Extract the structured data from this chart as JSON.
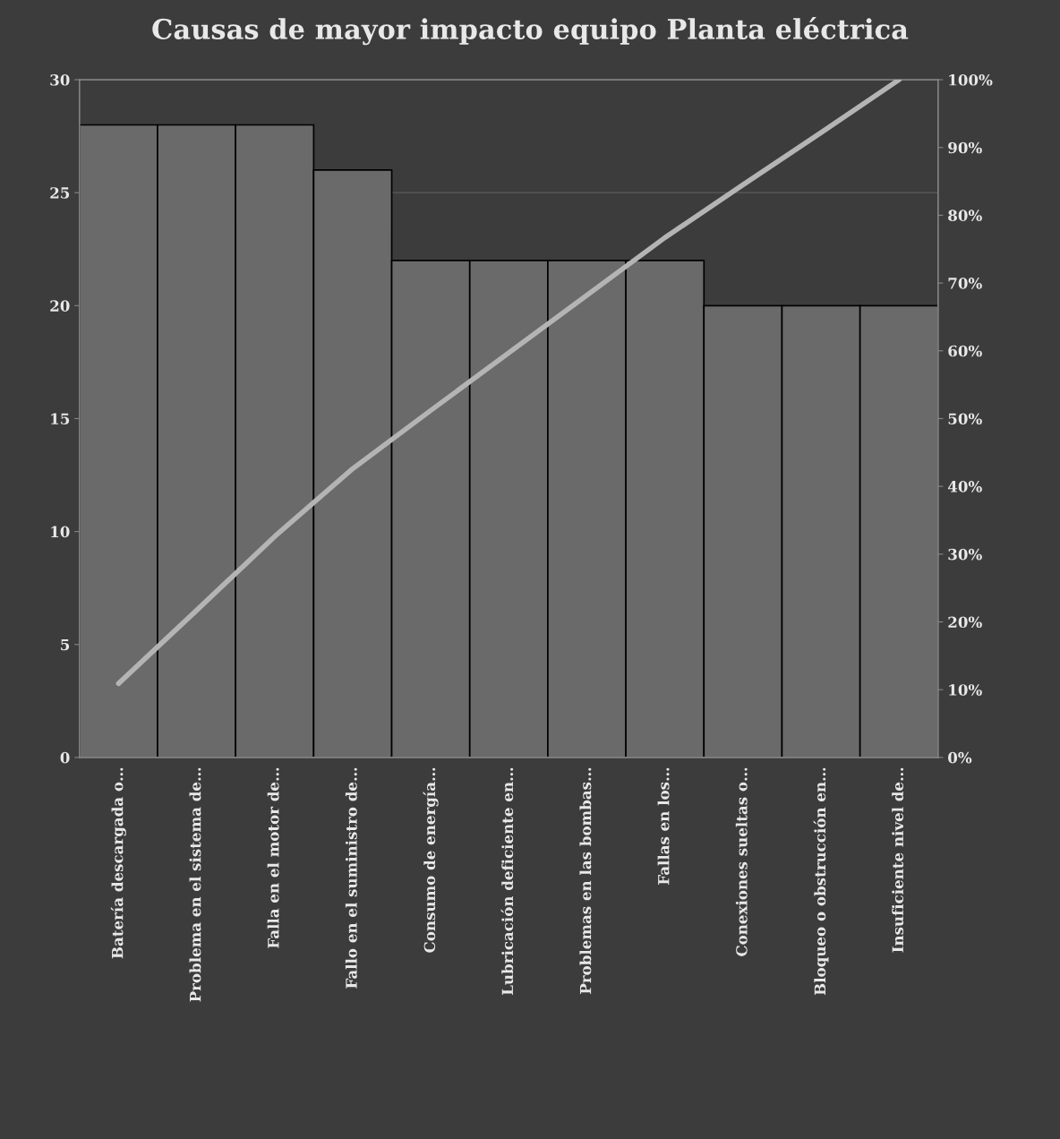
{
  "chart_data": {
    "type": "bar",
    "title": "Causas de mayor impacto equipo Planta eléctrica",
    "categories": [
      "Batería descargada o…",
      "Problema en el sistema de…",
      "Falla en el motor de…",
      "Fallo en el suministro de…",
      "Consumo de energía…",
      "Lubricación deficiente en…",
      "Problemas en las bombas…",
      "Fallas en los…",
      "Conexiones sueltas o…",
      "Bloqueo o obstrucción en…",
      "Insuficiente nivel de…"
    ],
    "series": [
      {
        "color": "#6a6a6a",
        "values": [
          28,
          28,
          28,
          26,
          22,
          22,
          22,
          22,
          20,
          20,
          20
        ]
      },
      {
        "type": "line",
        "axis": "y2",
        "color": "#b4b4b4",
        "values": [
          10.9,
          21.7,
          32.6,
          42.6,
          51.2,
          59.7,
          68.2,
          76.7,
          84.5,
          92.2,
          100
        ]
      }
    ],
    "ylim": [
      0,
      30
    ],
    "yticks": [
      0,
      5,
      10,
      15,
      20,
      25,
      30
    ],
    "y2lim": [
      0,
      100
    ],
    "y2ticks": [
      {
        "value": 0,
        "label": "0%"
      },
      {
        "value": 10,
        "label": "10%"
      },
      {
        "value": 20,
        "label": "20%"
      },
      {
        "value": 30,
        "label": "30%"
      },
      {
        "value": 40,
        "label": "40%"
      },
      {
        "value": 50,
        "label": "50%"
      },
      {
        "value": 60,
        "label": "60%"
      },
      {
        "value": 70,
        "label": "70%"
      },
      {
        "value": 80,
        "label": "80%"
      },
      {
        "value": 90,
        "label": "90%"
      },
      {
        "value": 100,
        "label": "100%"
      }
    ],
    "grid": "y",
    "legend": false
  }
}
